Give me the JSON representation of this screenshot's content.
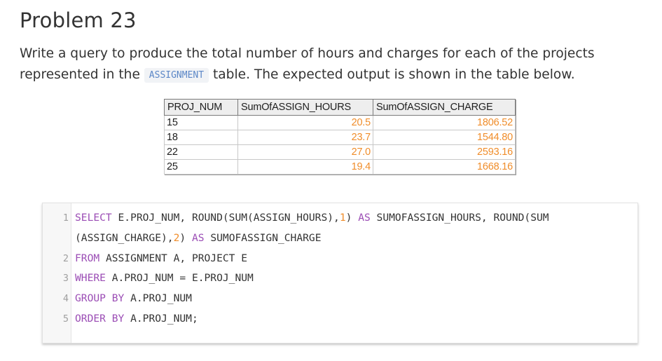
{
  "heading": "Problem 23",
  "description": {
    "before": "Write a query to produce the total number of hours and charges for each of the projects represented in the ",
    "code_term": "ASSIGNMENT",
    "after": " table. The expected output is shown in the table below."
  },
  "result_table": {
    "headers": [
      "PROJ_NUM",
      "SumOfASSIGN_HOURS",
      "SumOfASSIGN_CHARGE"
    ],
    "rows": [
      [
        "15",
        "20.5",
        "1806.52"
      ],
      [
        "18",
        "23.7",
        "1544.80"
      ],
      [
        "22",
        "27.0",
        "2593.16"
      ],
      [
        "25",
        "19.4",
        "1668.16"
      ]
    ]
  },
  "code": {
    "lines": [
      {
        "number": "1",
        "visual_rows": [
          [
            {
              "t": "SELECT",
              "k": "kw"
            },
            {
              "t": " E.PROJ_NUM, ROUND(SUM(ASSIGN_HOURS),",
              "k": "plain"
            },
            {
              "t": "1",
              "k": "num"
            },
            {
              "t": ") ",
              "k": "plain"
            },
            {
              "t": "AS",
              "k": "kw"
            },
            {
              "t": " SUMOFASSIGN_HOURS, ROUND(SUM",
              "k": "plain"
            }
          ],
          [
            {
              "t": "(ASSIGN_CHARGE),",
              "k": "plain"
            },
            {
              "t": "2",
              "k": "num"
            },
            {
              "t": ") ",
              "k": "plain"
            },
            {
              "t": "AS",
              "k": "kw"
            },
            {
              "t": " SUMOFASSIGN_CHARGE",
              "k": "plain"
            }
          ]
        ]
      },
      {
        "number": "2",
        "visual_rows": [
          [
            {
              "t": "FROM",
              "k": "kw"
            },
            {
              "t": " ASSIGNMENT A, PROJECT E",
              "k": "plain"
            }
          ]
        ]
      },
      {
        "number": "3",
        "visual_rows": [
          [
            {
              "t": "WHERE",
              "k": "kw"
            },
            {
              "t": " A.PROJ_NUM = E.PROJ_NUM",
              "k": "plain"
            }
          ]
        ]
      },
      {
        "number": "4",
        "visual_rows": [
          [
            {
              "t": "GROUP",
              "k": "kw"
            },
            {
              "t": " ",
              "k": "plain"
            },
            {
              "t": "BY",
              "k": "kw"
            },
            {
              "t": " A.PROJ_NUM",
              "k": "plain"
            }
          ]
        ]
      },
      {
        "number": "5",
        "visual_rows": [
          [
            {
              "t": "ORDER",
              "k": "kw"
            },
            {
              "t": " ",
              "k": "plain"
            },
            {
              "t": "BY",
              "k": "kw"
            },
            {
              "t": " A.PROJ_NUM;",
              "k": "plain"
            }
          ]
        ]
      }
    ]
  },
  "colors": {
    "keyword": "#9b4db5",
    "number_literal": "#f08d2a",
    "inline_code": "#5c87c7"
  }
}
